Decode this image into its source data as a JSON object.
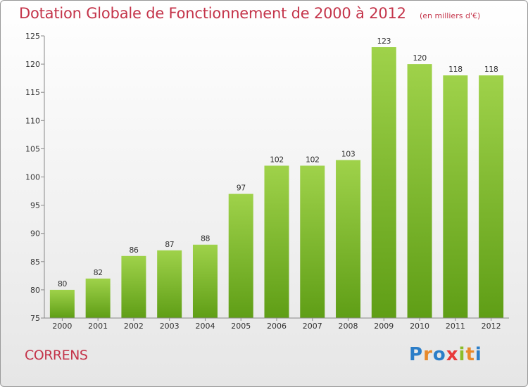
{
  "header": {
    "title": "Dotation Globale de Fonctionnement de 2000 à 2012",
    "unit": "(en milliers d'€)"
  },
  "footer": {
    "commune": "CORRENS",
    "brand_letters": [
      "P",
      "r",
      "o",
      "x",
      "i",
      "t",
      "i"
    ]
  },
  "colors": {
    "title": "#c4344a",
    "bar_top": "#9fd24a",
    "bar_bottom": "#5f9e16",
    "axis": "#888888",
    "brand": [
      "#2c7ec8",
      "#e8892a",
      "#2c7ec8",
      "#e83a3a",
      "#8bbd2a",
      "#e8892a",
      "#2c7ec8"
    ]
  },
  "chart_data": {
    "type": "bar",
    "categories": [
      "2000",
      "2001",
      "2002",
      "2003",
      "2004",
      "2005",
      "2006",
      "2007",
      "2008",
      "2009",
      "2010",
      "2011",
      "2012"
    ],
    "values": [
      80,
      82,
      86,
      87,
      88,
      97,
      102,
      102,
      103,
      123,
      120,
      118,
      118
    ],
    "ylim": [
      75,
      125
    ],
    "yticks": [
      75,
      80,
      85,
      90,
      95,
      100,
      105,
      110,
      115,
      120,
      125
    ],
    "grid": false,
    "data_labels": true
  }
}
